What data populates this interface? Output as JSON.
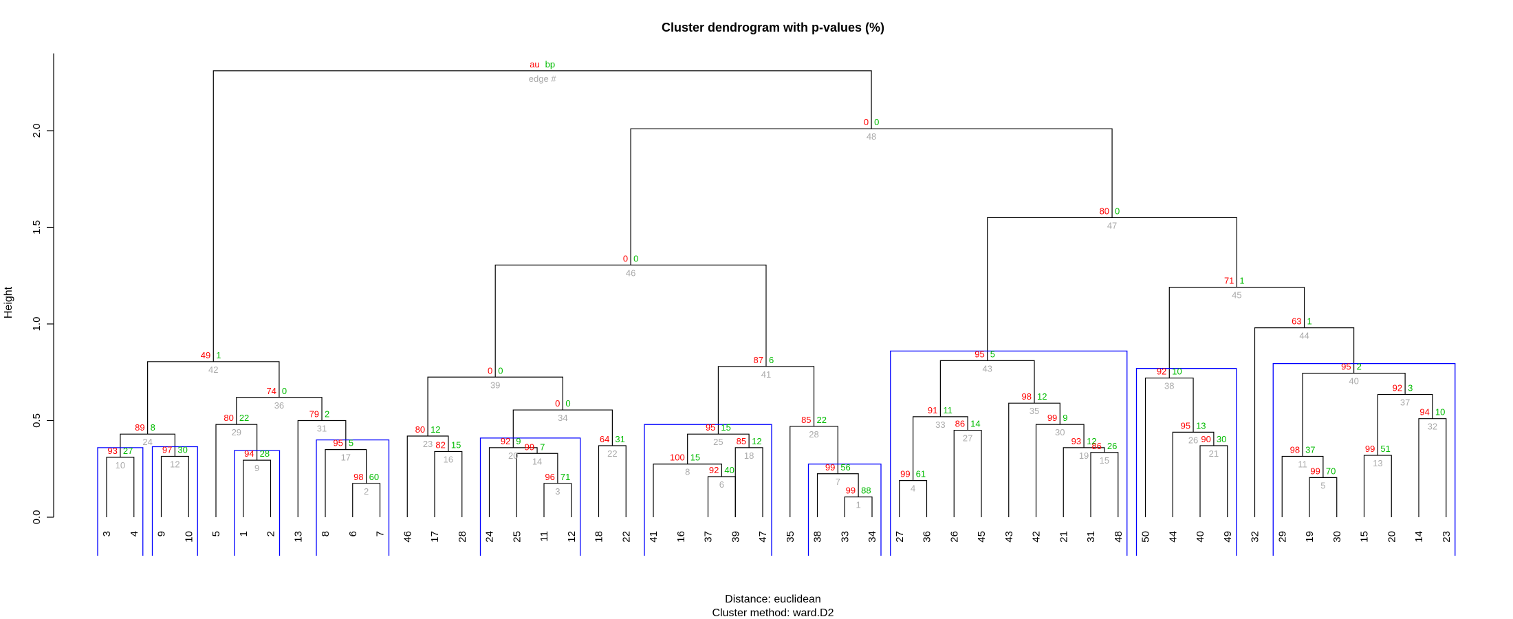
{
  "chart_data": {
    "type": "dendrogram",
    "title": "Cluster dendrogram with p-values (%)",
    "ylabel": "Height",
    "yticks": [
      "0.0",
      "0.5",
      "1.0",
      "1.5",
      "2.0"
    ],
    "ylim": [
      0,
      2.35
    ],
    "footer": [
      "Distance:  euclidean",
      "Cluster method: ward.D2"
    ],
    "legend": {
      "au": "au",
      "bp": "bp",
      "edge": "edge #"
    },
    "colors": {
      "au": "#ff0000",
      "bp": "#00bb00",
      "edge": "#aaaaaa",
      "rect": "#0000ff",
      "tree": "#000000"
    },
    "leaves": [
      "3",
      "4",
      "9",
      "10",
      "5",
      "1",
      "2",
      "13",
      "8",
      "6",
      "7",
      "46",
      "17",
      "28",
      "24",
      "25",
      "11",
      "12",
      "18",
      "22",
      "41",
      "16",
      "37",
      "39",
      "47",
      "35",
      "38",
      "33",
      "34",
      "27",
      "36",
      "26",
      "45",
      "43",
      "42",
      "21",
      "31",
      "48",
      "50",
      "44",
      "40",
      "49",
      "32",
      "29",
      "19",
      "30",
      "15",
      "20",
      "14",
      "23"
    ],
    "nodes": [
      {
        "edge": "1",
        "l": "L27",
        "r": "L28",
        "h": 0.105,
        "au": "99",
        "bp": "88"
      },
      {
        "edge": "2",
        "l": "L9",
        "r": "L10",
        "h": 0.175,
        "au": "98",
        "bp": "60"
      },
      {
        "edge": "3",
        "l": "L16",
        "r": "L17",
        "h": 0.175,
        "au": "96",
        "bp": "71"
      },
      {
        "edge": "4",
        "l": "L29",
        "r": "L30",
        "h": 0.19,
        "au": "99",
        "bp": "61"
      },
      {
        "edge": "5",
        "l": "L44",
        "r": "L45",
        "h": 0.205,
        "au": "99",
        "bp": "70"
      },
      {
        "edge": "6",
        "l": "L22",
        "r": "L23",
        "h": 0.21,
        "au": "92",
        "bp": "40"
      },
      {
        "edge": "7",
        "l": "L26",
        "r": "N1",
        "h": 0.225,
        "au": "99",
        "bp": "56"
      },
      {
        "edge": "8",
        "l": "L20",
        "r": "N6",
        "h": 0.275,
        "au": "100",
        "bp": "15"
      },
      {
        "edge": "9",
        "l": "L5",
        "r": "L6",
        "h": 0.295,
        "au": "94",
        "bp": "28"
      },
      {
        "edge": "10",
        "l": "L0",
        "r": "L1",
        "h": 0.31,
        "au": "93",
        "bp": "27"
      },
      {
        "edge": "11",
        "l": "L43",
        "r": "N5",
        "h": 0.315,
        "au": "98",
        "bp": "37"
      },
      {
        "edge": "12",
        "l": "L2",
        "r": "L3",
        "h": 0.315,
        "au": "97",
        "bp": "30"
      },
      {
        "edge": "13",
        "l": "L46",
        "r": "L47",
        "h": 0.32,
        "au": "99",
        "bp": "51"
      },
      {
        "edge": "14",
        "l": "L15",
        "r": "N3",
        "h": 0.33,
        "au": "99",
        "bp": "7"
      },
      {
        "edge": "15",
        "l": "L36",
        "r": "L37",
        "h": 0.335,
        "au": "86",
        "bp": "26"
      },
      {
        "edge": "16",
        "l": "L12",
        "r": "L13",
        "h": 0.34,
        "au": "82",
        "bp": "15"
      },
      {
        "edge": "17",
        "l": "L8",
        "r": "N2",
        "h": 0.35,
        "au": "95",
        "bp": "5"
      },
      {
        "edge": "18",
        "l": "L23",
        "r": "L24",
        "h": 0.36,
        "au": "85",
        "bp": "12"
      },
      {
        "edge": "19",
        "l": "L35",
        "r": "N15",
        "h": 0.36,
        "au": "93",
        "bp": "12"
      },
      {
        "edge": "20",
        "l": "L14",
        "r": "N14",
        "h": 0.36,
        "au": "92",
        "bp": "9"
      },
      {
        "edge": "21",
        "l": "L40",
        "r": "L41",
        "h": 0.37,
        "au": "90",
        "bp": "30"
      },
      {
        "edge": "22",
        "l": "L18",
        "r": "L19",
        "h": 0.37,
        "au": "64",
        "bp": "31"
      },
      {
        "edge": "23",
        "l": "L11",
        "r": "N16",
        "h": 0.42,
        "au": "80",
        "bp": "12"
      },
      {
        "edge": "24",
        "l": "N10",
        "r": "N12",
        "h": 0.43,
        "au": "89",
        "bp": "8"
      },
      {
        "edge": "25",
        "l": "N8",
        "r": "N18",
        "h": 0.43,
        "au": "95",
        "bp": "15"
      },
      {
        "edge": "26",
        "l": "L39",
        "r": "N21",
        "h": 0.44,
        "au": "95",
        "bp": "13"
      },
      {
        "edge": "27",
        "l": "L31",
        "r": "L32",
        "h": 0.45,
        "au": "86",
        "bp": "14"
      },
      {
        "edge": "28",
        "l": "L25",
        "r": "N7",
        "h": 0.47,
        "au": "85",
        "bp": "22"
      },
      {
        "edge": "29",
        "l": "L4",
        "r": "N9",
        "h": 0.48,
        "au": "80",
        "bp": "22"
      },
      {
        "edge": "30",
        "l": "L34",
        "r": "N19",
        "h": 0.48,
        "au": "99",
        "bp": "9"
      },
      {
        "edge": "31",
        "l": "L7",
        "r": "N17",
        "h": 0.5,
        "au": "79",
        "bp": "2"
      },
      {
        "edge": "32",
        "l": "L48",
        "r": "L49",
        "h": 0.51,
        "au": "94",
        "bp": "10"
      },
      {
        "edge": "33",
        "l": "N4",
        "r": "N27",
        "h": 0.52,
        "au": "91",
        "bp": "11"
      },
      {
        "edge": "34",
        "l": "N20",
        "r": "N22",
        "h": 0.555,
        "au": "0",
        "bp": "0"
      },
      {
        "edge": "35",
        "l": "L33",
        "r": "N30",
        "h": 0.59,
        "au": "98",
        "bp": "12"
      },
      {
        "edge": "36",
        "l": "N29",
        "r": "N31",
        "h": 0.62,
        "au": "74",
        "bp": "0"
      },
      {
        "edge": "37",
        "l": "N13",
        "r": "N32",
        "h": 0.635,
        "au": "92",
        "bp": "3"
      },
      {
        "edge": "38",
        "l": "L38",
        "r": "N26",
        "h": 0.72,
        "au": "92",
        "bp": "10"
      },
      {
        "edge": "39",
        "l": "N23",
        "r": "N34",
        "h": 0.725,
        "au": "0",
        "bp": "0"
      },
      {
        "edge": "40",
        "l": "N11",
        "r": "N37",
        "h": 0.745,
        "au": "95",
        "bp": "2"
      },
      {
        "edge": "41",
        "l": "N25",
        "r": "N28",
        "h": 0.78,
        "au": "87",
        "bp": "6"
      },
      {
        "edge": "42",
        "l": "N24",
        "r": "N36",
        "h": 0.805,
        "au": "49",
        "bp": "1"
      },
      {
        "edge": "43",
        "l": "N33",
        "r": "N35",
        "h": 0.81,
        "au": "95",
        "bp": "5"
      },
      {
        "edge": "44",
        "l": "L42",
        "r": "N40",
        "h": 0.98,
        "au": "63",
        "bp": "1"
      },
      {
        "edge": "45",
        "l": "N38",
        "r": "N44",
        "h": 1.19,
        "au": "71",
        "bp": "1"
      },
      {
        "edge": "46",
        "l": "N39",
        "r": "N41",
        "h": 1.305,
        "au": "0",
        "bp": "0"
      },
      {
        "edge": "47",
        "l": "N43",
        "r": "N45",
        "h": 1.55,
        "au": "80",
        "bp": "0"
      },
      {
        "edge": "48",
        "l": "N46",
        "r": "N47",
        "h": 2.01,
        "au": "0",
        "bp": "0"
      },
      {
        "edge": "49",
        "l": "N42",
        "r": "N48",
        "h": 2.31,
        "au": "au",
        "bp": "bp"
      }
    ],
    "highlight_clusters": [
      {
        "from": "3",
        "to": "4"
      },
      {
        "from": "9",
        "to": "10"
      },
      {
        "from": "1",
        "to": "2"
      },
      {
        "from": "8",
        "to": "7"
      },
      {
        "from": "24",
        "to": "12"
      },
      {
        "from": "41",
        "to": "47"
      },
      {
        "from": "38",
        "to": "34"
      },
      {
        "from": "27",
        "to": "48"
      },
      {
        "from": "50",
        "to": "49"
      },
      {
        "from": "29",
        "to": "23"
      }
    ]
  }
}
